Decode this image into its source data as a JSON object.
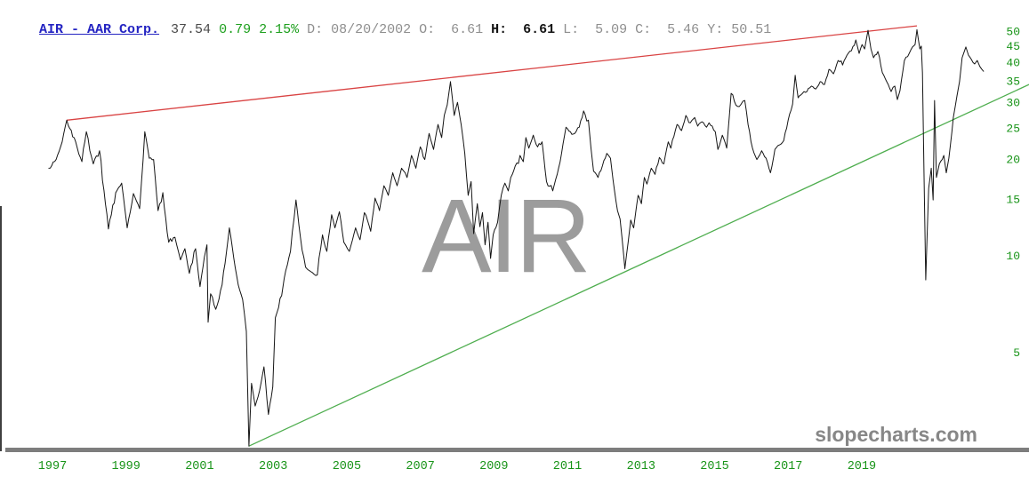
{
  "header": {
    "ticker_link": "AIR - AAR Corp.",
    "last": "37.54",
    "change": "0.79",
    "change_pct": "2.15%",
    "date": "D: 08/20/2002",
    "open": "O:  6.61",
    "high": "H:  6.61",
    "low": "L:  5.09",
    "close": "C:  5.46",
    "year_ref": "Y: 50.51"
  },
  "watermarks": {
    "ticker": "AIR",
    "site": "slopecharts.com"
  },
  "colors": {
    "link_blue": "#2424c2",
    "value_green": "#1ea01e",
    "axis_green": "#189418",
    "muted_gray": "#8e8e8e",
    "dark_value": "#4a4a4a",
    "price_line": "#151515",
    "trend_red": "#d94343",
    "trend_green": "#4fae4f",
    "separator_gray": "#7d7d7d",
    "watermark_gray": "#9c9c9c",
    "site_gray": "#878787"
  },
  "chart_data": {
    "type": "line",
    "title": "AIR - AAR Corp.",
    "scale": "log",
    "grid": false,
    "legend": "none",
    "x_tick_labels": [
      "1997",
      "1999",
      "2001",
      "2003",
      "2005",
      "2007",
      "2009",
      "2011",
      "2013",
      "2015",
      "2017",
      "2019"
    ],
    "y_ticks": [
      50,
      45,
      40,
      35,
      30,
      25,
      20,
      15,
      10,
      5
    ],
    "x_domain_years": [
      1996.8,
      2023.55
    ],
    "y_domain_price": [
      2.4,
      52
    ],
    "trendlines": [
      {
        "name": "upper-resistance",
        "color_key": "trend_red",
        "from": [
          1997.39,
          26.4
        ],
        "to": [
          2020.5,
          51.9
        ]
      },
      {
        "name": "lower-support",
        "color_key": "trend_green",
        "from": [
          2002.34,
          2.55
        ],
        "to": [
          2023.55,
          34.1
        ]
      }
    ],
    "series": [
      {
        "name": "AIR daily close",
        "points": [
          [
            1996.9,
            18.7
          ],
          [
            1997.1,
            19.9
          ],
          [
            1997.22,
            21.8
          ],
          [
            1997.39,
            26.4
          ],
          [
            1997.63,
            22.6
          ],
          [
            1997.8,
            19.6
          ],
          [
            1997.92,
            24.3
          ],
          [
            1998.11,
            19.3
          ],
          [
            1998.28,
            21.2
          ],
          [
            1998.52,
            12.1
          ],
          [
            1998.72,
            15.7
          ],
          [
            1998.88,
            16.8
          ],
          [
            1999.03,
            12.2
          ],
          [
            1999.2,
            15.6
          ],
          [
            1999.37,
            14.0
          ],
          [
            1999.51,
            24.3
          ],
          [
            1999.63,
            20.1
          ],
          [
            1999.75,
            19.9
          ],
          [
            1999.87,
            13.8
          ],
          [
            2000.0,
            15.7
          ],
          [
            2000.16,
            11.0
          ],
          [
            2000.33,
            11.4
          ],
          [
            2000.48,
            9.7
          ],
          [
            2000.6,
            10.5
          ],
          [
            2000.72,
            8.8
          ],
          [
            2000.89,
            10.5
          ],
          [
            2001.01,
            8.0
          ],
          [
            2001.13,
            9.9
          ],
          [
            2001.2,
            10.8
          ],
          [
            2001.23,
            6.2
          ],
          [
            2001.3,
            7.6
          ],
          [
            2001.44,
            6.8
          ],
          [
            2001.61,
            8.1
          ],
          [
            2001.81,
            12.2
          ],
          [
            2001.93,
            9.8
          ],
          [
            2002.05,
            8.1
          ],
          [
            2002.17,
            7.3
          ],
          [
            2002.27,
            5.8
          ],
          [
            2002.34,
            2.55
          ],
          [
            2002.41,
            4.0
          ],
          [
            2002.51,
            3.4
          ],
          [
            2002.63,
            3.8
          ],
          [
            2002.75,
            4.5
          ],
          [
            2002.87,
            3.2
          ],
          [
            2002.99,
            3.9
          ],
          [
            2003.06,
            6.4
          ],
          [
            2003.23,
            7.5
          ],
          [
            2003.3,
            8.5
          ],
          [
            2003.47,
            10.3
          ],
          [
            2003.62,
            14.9
          ],
          [
            2003.74,
            11.4
          ],
          [
            2003.88,
            9.2
          ],
          [
            2004.03,
            8.9
          ],
          [
            2004.2,
            8.7
          ],
          [
            2004.34,
            11.6
          ],
          [
            2004.46,
            10.3
          ],
          [
            2004.59,
            13.4
          ],
          [
            2004.68,
            12.2
          ],
          [
            2004.8,
            13.7
          ],
          [
            2004.92,
            11.0
          ],
          [
            2005.07,
            10.3
          ],
          [
            2005.24,
            12.2
          ],
          [
            2005.36,
            11.2
          ],
          [
            2005.48,
            13.6
          ],
          [
            2005.65,
            11.9
          ],
          [
            2005.77,
            15.1
          ],
          [
            2005.89,
            13.8
          ],
          [
            2006.01,
            16.5
          ],
          [
            2006.13,
            15.4
          ],
          [
            2006.25,
            18.1
          ],
          [
            2006.37,
            16.5
          ],
          [
            2006.49,
            18.7
          ],
          [
            2006.64,
            17.5
          ],
          [
            2006.76,
            20.5
          ],
          [
            2006.88,
            18.7
          ],
          [
            2007.0,
            21.8
          ],
          [
            2007.12,
            19.9
          ],
          [
            2007.24,
            24.0
          ],
          [
            2007.36,
            21.4
          ],
          [
            2007.48,
            25.6
          ],
          [
            2007.58,
            23.3
          ],
          [
            2007.65,
            27.3
          ],
          [
            2007.73,
            29.4
          ],
          [
            2007.82,
            34.8
          ],
          [
            2007.92,
            27.3
          ],
          [
            2008.01,
            30.0
          ],
          [
            2008.11,
            25.6
          ],
          [
            2008.21,
            20.8
          ],
          [
            2008.3,
            15.4
          ],
          [
            2008.38,
            17.0
          ],
          [
            2008.45,
            11.7
          ],
          [
            2008.55,
            14.5
          ],
          [
            2008.62,
            12.3
          ],
          [
            2008.69,
            13.6
          ],
          [
            2008.76,
            10.8
          ],
          [
            2008.84,
            12.7
          ],
          [
            2008.91,
            9.8
          ],
          [
            2008.98,
            11.6
          ],
          [
            2009.1,
            12.7
          ],
          [
            2009.2,
            15.4
          ],
          [
            2009.3,
            16.8
          ],
          [
            2009.39,
            15.9
          ],
          [
            2009.46,
            17.5
          ],
          [
            2009.58,
            19.0
          ],
          [
            2009.71,
            20.5
          ],
          [
            2009.8,
            19.6
          ],
          [
            2009.87,
            23.3
          ],
          [
            2009.95,
            21.6
          ],
          [
            2010.07,
            23.7
          ],
          [
            2010.19,
            21.8
          ],
          [
            2010.31,
            22.6
          ],
          [
            2010.43,
            17.0
          ],
          [
            2010.6,
            15.9
          ],
          [
            2010.72,
            17.9
          ],
          [
            2010.84,
            20.8
          ],
          [
            2010.96,
            25.1
          ],
          [
            2011.08,
            24.3
          ],
          [
            2011.2,
            24.0
          ],
          [
            2011.32,
            25.1
          ],
          [
            2011.44,
            28.2
          ],
          [
            2011.57,
            26.4
          ],
          [
            2011.64,
            21.6
          ],
          [
            2011.71,
            18.3
          ],
          [
            2011.83,
            17.5
          ],
          [
            2011.95,
            19.0
          ],
          [
            2012.07,
            20.8
          ],
          [
            2012.17,
            20.1
          ],
          [
            2012.24,
            17.2
          ],
          [
            2012.36,
            13.8
          ],
          [
            2012.43,
            13.0
          ],
          [
            2012.53,
            10.0
          ],
          [
            2012.56,
            9.1
          ],
          [
            2012.65,
            11.0
          ],
          [
            2012.72,
            12.9
          ],
          [
            2012.8,
            12.2
          ],
          [
            2012.92,
            15.4
          ],
          [
            2013.01,
            14.5
          ],
          [
            2013.09,
            17.5
          ],
          [
            2013.16,
            16.7
          ],
          [
            2013.28,
            18.7
          ],
          [
            2013.38,
            17.9
          ],
          [
            2013.5,
            20.2
          ],
          [
            2013.62,
            19.3
          ],
          [
            2013.74,
            22.6
          ],
          [
            2013.81,
            21.6
          ],
          [
            2013.98,
            25.6
          ],
          [
            2014.1,
            24.5
          ],
          [
            2014.22,
            27.3
          ],
          [
            2014.34,
            25.9
          ],
          [
            2014.46,
            26.9
          ],
          [
            2014.54,
            25.3
          ],
          [
            2014.66,
            26.1
          ],
          [
            2014.78,
            25.1
          ],
          [
            2014.85,
            25.9
          ],
          [
            2015.02,
            24.3
          ],
          [
            2015.09,
            21.4
          ],
          [
            2015.21,
            23.7
          ],
          [
            2015.33,
            21.6
          ],
          [
            2015.45,
            32.0
          ],
          [
            2015.58,
            29.4
          ],
          [
            2015.67,
            29.1
          ],
          [
            2015.82,
            30.4
          ],
          [
            2015.91,
            25.6
          ],
          [
            2016.03,
            21.6
          ],
          [
            2016.15,
            19.9
          ],
          [
            2016.28,
            21.2
          ],
          [
            2016.4,
            20.1
          ],
          [
            2016.52,
            18.1
          ],
          [
            2016.64,
            21.4
          ],
          [
            2016.76,
            22.1
          ],
          [
            2016.88,
            22.8
          ],
          [
            2017.0,
            26.4
          ],
          [
            2017.12,
            29.6
          ],
          [
            2017.19,
            36.4
          ],
          [
            2017.27,
            31.0
          ],
          [
            2017.39,
            32.0
          ],
          [
            2017.51,
            32.4
          ],
          [
            2017.63,
            33.7
          ],
          [
            2017.75,
            33.0
          ],
          [
            2017.87,
            34.8
          ],
          [
            2017.99,
            34.1
          ],
          [
            2018.11,
            38.0
          ],
          [
            2018.23,
            36.8
          ],
          [
            2018.36,
            40.5
          ],
          [
            2018.48,
            39.2
          ],
          [
            2018.6,
            42.1
          ],
          [
            2018.72,
            43.4
          ],
          [
            2018.84,
            46.9
          ],
          [
            2018.93,
            42.6
          ],
          [
            2019.01,
            45.4
          ],
          [
            2019.08,
            44.0
          ],
          [
            2019.17,
            50.3
          ],
          [
            2019.25,
            44.0
          ],
          [
            2019.32,
            41.3
          ],
          [
            2019.44,
            43.2
          ],
          [
            2019.56,
            37.1
          ],
          [
            2019.68,
            34.8
          ],
          [
            2019.8,
            32.4
          ],
          [
            2019.9,
            33.7
          ],
          [
            2019.97,
            30.6
          ],
          [
            2020.04,
            32.6
          ],
          [
            2020.16,
            40.5
          ],
          [
            2020.29,
            42.6
          ],
          [
            2020.38,
            44.6
          ],
          [
            2020.45,
            45.4
          ],
          [
            2020.5,
            50.5
          ],
          [
            2020.58,
            44.0
          ],
          [
            2020.62,
            44.9
          ],
          [
            2020.65,
            37.1
          ],
          [
            2020.74,
            8.4
          ],
          [
            2020.82,
            16.2
          ],
          [
            2020.89,
            18.7
          ],
          [
            2020.94,
            14.9
          ],
          [
            2020.98,
            30.4
          ],
          [
            2021.03,
            17.5
          ],
          [
            2021.11,
            19.3
          ],
          [
            2021.23,
            20.5
          ],
          [
            2021.3,
            18.1
          ],
          [
            2021.37,
            20.1
          ],
          [
            2021.49,
            26.9
          ],
          [
            2021.59,
            31.4
          ],
          [
            2021.66,
            34.8
          ],
          [
            2021.73,
            41.3
          ],
          [
            2021.83,
            44.6
          ],
          [
            2021.9,
            42.1
          ],
          [
            2021.98,
            40.8
          ],
          [
            2022.07,
            39.5
          ],
          [
            2022.14,
            40.5
          ],
          [
            2022.21,
            38.8
          ],
          [
            2022.31,
            37.5
          ]
        ]
      }
    ]
  }
}
